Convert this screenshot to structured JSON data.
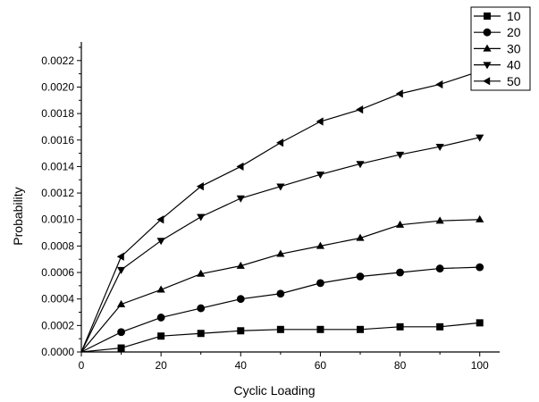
{
  "chart_data": {
    "type": "line",
    "title": "",
    "xlabel": "Cyclic Loading",
    "ylabel": "Probability",
    "xlim": [
      0,
      105
    ],
    "ylim": [
      0,
      0.00232
    ],
    "x_ticks": [
      0,
      20,
      40,
      60,
      80,
      100
    ],
    "x_tick_labels": [
      "0",
      "20",
      "40",
      "60",
      "80",
      "100"
    ],
    "y_ticks": [
      0,
      0.0002,
      0.0004,
      0.0006,
      0.0008,
      0.001,
      0.0012,
      0.0014,
      0.0016,
      0.0018,
      0.002,
      0.0022
    ],
    "y_tick_labels": [
      "0.0000",
      "0.0002",
      "0.0004",
      "0.0006",
      "0.0008",
      "0.0010",
      "0.0012",
      "0.0014",
      "0.0016",
      "0.0018",
      "0.0020",
      "0.0022"
    ],
    "x": [
      0,
      10,
      20,
      30,
      40,
      50,
      60,
      70,
      80,
      90,
      100
    ],
    "grid": false,
    "legend_position": "top-right",
    "series": [
      {
        "name": "10",
        "marker": "square",
        "values": [
          0,
          3e-05,
          0.00012,
          0.00014,
          0.00016,
          0.00017,
          0.00017,
          0.00017,
          0.00019,
          0.00019,
          0.00022
        ]
      },
      {
        "name": "20",
        "marker": "circle",
        "values": [
          0,
          0.00015,
          0.00026,
          0.00033,
          0.0004,
          0.00044,
          0.00052,
          0.00057,
          0.0006,
          0.00063,
          0.00064
        ]
      },
      {
        "name": "30",
        "marker": "triangle-up",
        "values": [
          0,
          0.00036,
          0.00047,
          0.00059,
          0.00065,
          0.00074,
          0.0008,
          0.00086,
          0.00096,
          0.00099,
          0.001
        ]
      },
      {
        "name": "40",
        "marker": "triangle-down",
        "values": [
          0,
          0.00062,
          0.00084,
          0.00102,
          0.00116,
          0.00125,
          0.00134,
          0.00142,
          0.00149,
          0.00155,
          0.00162
        ]
      },
      {
        "name": "50",
        "marker": "triangle-left",
        "values": [
          0,
          0.00072,
          0.001,
          0.00125,
          0.0014,
          0.00158,
          0.00174,
          0.00183,
          0.00195,
          0.00202,
          0.00212
        ]
      }
    ]
  }
}
